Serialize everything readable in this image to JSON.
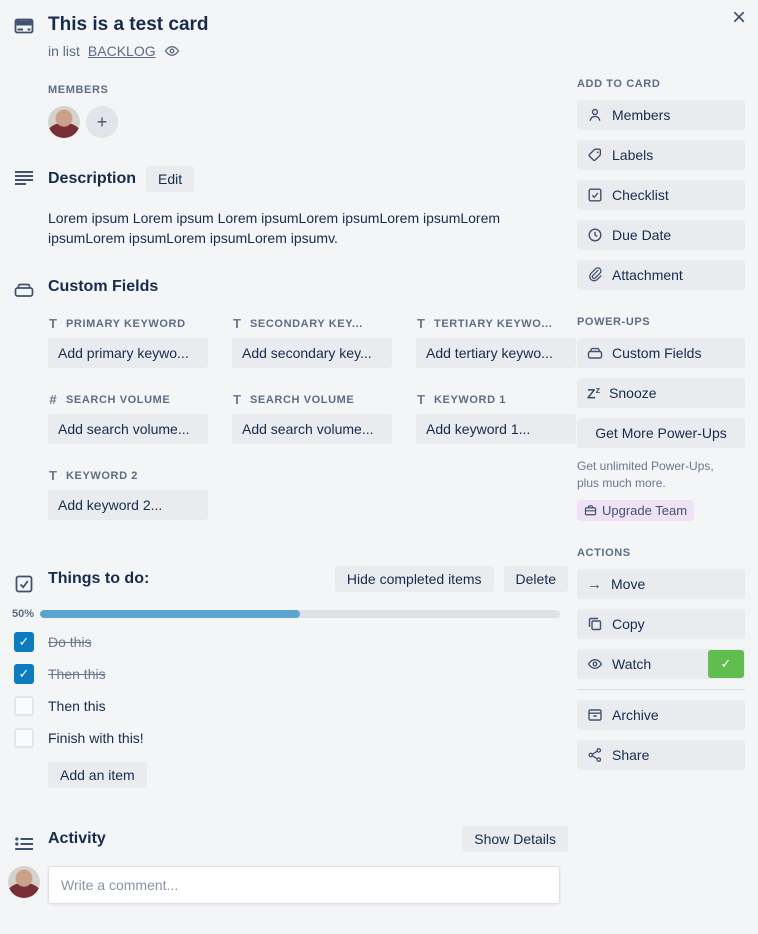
{
  "glyphs": {
    "close": "×",
    "plus": "+",
    "check": "✓",
    "arrow_right": "→",
    "snooze_big": "Z",
    "snooze_small": "z"
  },
  "colors": {
    "background": "#f4f5f7",
    "button_gray": "#e9ebee",
    "text_dark": "#172b4d",
    "text_muted": "#5e6c84",
    "checkbox_checked": "#0c7bbf",
    "progress_fill": "#5ba4cf",
    "progress_track": "#dfe1e6",
    "watch_badge_green": "#61bd4f",
    "upgrade_badge_bg": "#f0e2f6"
  },
  "header": {
    "title": "This is a test card",
    "list_prefix": "in list",
    "list_name": "BACKLOG"
  },
  "members": {
    "label": "MEMBERS"
  },
  "description": {
    "title": "Description",
    "edit_label": "Edit",
    "text": "Lorem ipsum Lorem ipsum Lorem ipsumLorem ipsumLorem ipsumLorem ipsumLorem ipsumLorem ipsumLorem ipsumv."
  },
  "custom_fields": {
    "title": "Custom Fields",
    "fields": [
      {
        "type_glyph": "T",
        "label": "PRIMARY KEYWORD",
        "placeholder": "Add primary keywo..."
      },
      {
        "type_glyph": "T",
        "label": "SECONDARY KEY...",
        "placeholder": "Add secondary key..."
      },
      {
        "type_glyph": "T",
        "label": "TERTIARY KEYWO...",
        "placeholder": "Add tertiary keywo..."
      },
      {
        "type_glyph": "#",
        "label": "SEARCH VOLUME",
        "placeholder": "Add search volume..."
      },
      {
        "type_glyph": "T",
        "label": "SEARCH VOLUME",
        "placeholder": "Add search volume..."
      },
      {
        "type_glyph": "T",
        "label": "KEYWORD 1",
        "placeholder": "Add keyword 1..."
      },
      {
        "type_glyph": "T",
        "label": "KEYWORD 2",
        "placeholder": "Add keyword 2..."
      }
    ]
  },
  "checklist": {
    "title": "Things to do:",
    "hide_completed_label": "Hide completed items",
    "delete_label": "Delete",
    "progress_label": "50%",
    "progress_value": 50,
    "items": [
      {
        "text": "Do this",
        "checked": true
      },
      {
        "text": "Then this",
        "checked": true
      },
      {
        "text": "Then this",
        "checked": false
      },
      {
        "text": "Finish with this!",
        "checked": false
      }
    ],
    "add_item_label": "Add an item"
  },
  "activity": {
    "title": "Activity",
    "show_details_label": "Show Details",
    "comment_placeholder": "Write a comment..."
  },
  "sidebar": {
    "add_to_card": {
      "title": "ADD TO CARD",
      "items": [
        {
          "label": "Members"
        },
        {
          "label": "Labels"
        },
        {
          "label": "Checklist"
        },
        {
          "label": "Due Date"
        },
        {
          "label": "Attachment"
        }
      ]
    },
    "power_ups": {
      "title": "POWER-UPS",
      "custom_fields_label": "Custom Fields",
      "snooze_label": "Snooze",
      "get_more_label": "Get More Power-Ups",
      "promo_text": "Get unlimited Power-Ups, plus much more.",
      "upgrade_label": "Upgrade Team"
    },
    "actions": {
      "title": "ACTIONS",
      "move_label": "Move",
      "copy_label": "Copy",
      "watch_label": "Watch",
      "archive_label": "Archive",
      "share_label": "Share"
    }
  }
}
